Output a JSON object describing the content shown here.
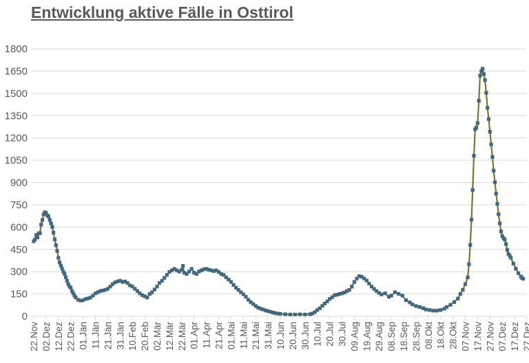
{
  "title": "Entwicklung aktive Fälle in Osttirol",
  "colors": {
    "title_text": "#595959",
    "axis_text": "#595959",
    "gridline": "#d9d9d9",
    "series_line": "#6e7c2f",
    "series_marker": "#426880",
    "background": "#ffffff"
  },
  "chart_data": {
    "type": "line",
    "title": "Entwicklung aktive Fälle in Osttirol",
    "xlabel": "",
    "ylabel": "",
    "grid": true,
    "legend": "none",
    "marker_shape": "square",
    "ylim": [
      0,
      1800
    ],
    "ytick_step": 150,
    "yticks": [
      0,
      150,
      300,
      450,
      600,
      750,
      900,
      1050,
      1200,
      1350,
      1500,
      1650,
      1800
    ],
    "xtick_interval_days": 10,
    "xtick_labels": [
      "22.Nov",
      "02.Dez",
      "12.Dez",
      "22.Dez",
      "01.Jän",
      "11.Jän",
      "21.Jän",
      "31.Jän",
      "10.Feb",
      "20.Feb",
      "02.Mär",
      "12.Mär",
      "22.Mär",
      "01.Apr",
      "11.Apr",
      "21.Apr",
      "01.Mai",
      "11.Mai",
      "21.Mai",
      "31.Mai",
      "10.Jun",
      "20.Jun",
      "30.Jun",
      "10.Jul",
      "20.Jul",
      "30.Jul",
      "09.Aug",
      "19.Aug",
      "29.Aug",
      "08.Sep",
      "18.Sep",
      "28.Sep",
      "08.Okt",
      "18.Okt",
      "28.Okt",
      "07.Nov",
      "17.Nov",
      "27.Nov",
      "07.Dez",
      "17.Dez",
      "27.Dez"
    ],
    "series": [
      {
        "name": "aktive Fälle",
        "line_color": "#6e7c2f",
        "marker_color": "#426880",
        "points_format": "[day_offset_from_22Nov, active_cases]",
        "points": [
          [
            0,
            505
          ],
          [
            1,
            517
          ],
          [
            2,
            547
          ],
          [
            3,
            530
          ],
          [
            4,
            558
          ],
          [
            5,
            560
          ],
          [
            6,
            617
          ],
          [
            7,
            648
          ],
          [
            8,
            686
          ],
          [
            9,
            700
          ],
          [
            10,
            694
          ],
          [
            11,
            679
          ],
          [
            12,
            671
          ],
          [
            13,
            648
          ],
          [
            14,
            625
          ],
          [
            15,
            601
          ],
          [
            16,
            563
          ],
          [
            17,
            517
          ],
          [
            18,
            478
          ],
          [
            19,
            440
          ],
          [
            20,
            393
          ],
          [
            21,
            362
          ],
          [
            22,
            340
          ],
          [
            23,
            320
          ],
          [
            24,
            300
          ],
          [
            25,
            285
          ],
          [
            26,
            262
          ],
          [
            27,
            239
          ],
          [
            28,
            216
          ],
          [
            29,
            200
          ],
          [
            30,
            193
          ],
          [
            31,
            170
          ],
          [
            32,
            154
          ],
          [
            33,
            139
          ],
          [
            34,
            126
          ],
          [
            36,
            111
          ],
          [
            38,
            105
          ],
          [
            40,
            108
          ],
          [
            42,
            116
          ],
          [
            44,
            120
          ],
          [
            46,
            126
          ],
          [
            48,
            139
          ],
          [
            50,
            154
          ],
          [
            52,
            162
          ],
          [
            54,
            170
          ],
          [
            56,
            173
          ],
          [
            58,
            177
          ],
          [
            60,
            185
          ],
          [
            62,
            200
          ],
          [
            64,
            216
          ],
          [
            66,
            228
          ],
          [
            68,
            234
          ],
          [
            70,
            239
          ],
          [
            72,
            231
          ],
          [
            74,
            234
          ],
          [
            76,
            224
          ],
          [
            78,
            208
          ],
          [
            80,
            200
          ],
          [
            82,
            185
          ],
          [
            84,
            170
          ],
          [
            86,
            154
          ],
          [
            88,
            142
          ],
          [
            90,
            134
          ],
          [
            92,
            126
          ],
          [
            94,
            150
          ],
          [
            96,
            162
          ],
          [
            98,
            180
          ],
          [
            100,
            200
          ],
          [
            102,
            224
          ],
          [
            104,
            239
          ],
          [
            106,
            258
          ],
          [
            108,
            278
          ],
          [
            110,
            298
          ],
          [
            112,
            309
          ],
          [
            114,
            319
          ],
          [
            116,
            309
          ],
          [
            118,
            301
          ],
          [
            120,
            313
          ],
          [
            121,
            339
          ],
          [
            122,
            293
          ],
          [
            124,
            285
          ],
          [
            126,
            301
          ],
          [
            128,
            319
          ],
          [
            130,
            293
          ],
          [
            132,
            285
          ],
          [
            134,
            301
          ],
          [
            136,
            309
          ],
          [
            138,
            316
          ],
          [
            140,
            319
          ],
          [
            142,
            313
          ],
          [
            144,
            309
          ],
          [
            146,
            304
          ],
          [
            148,
            309
          ],
          [
            150,
            298
          ],
          [
            152,
            285
          ],
          [
            154,
            278
          ],
          [
            156,
            262
          ],
          [
            158,
            247
          ],
          [
            160,
            231
          ],
          [
            162,
            211
          ],
          [
            164,
            193
          ],
          [
            166,
            177
          ],
          [
            168,
            162
          ],
          [
            170,
            148
          ],
          [
            172,
            131
          ],
          [
            174,
            111
          ],
          [
            176,
            96
          ],
          [
            178,
            83
          ],
          [
            180,
            69
          ],
          [
            182,
            58
          ],
          [
            184,
            51
          ],
          [
            186,
            46
          ],
          [
            188,
            39
          ],
          [
            190,
            35
          ],
          [
            192,
            30
          ],
          [
            194,
            25
          ],
          [
            196,
            21
          ],
          [
            198,
            18
          ],
          [
            200,
            16
          ],
          [
            204,
            14
          ],
          [
            208,
            12
          ],
          [
            212,
            12
          ],
          [
            216,
            13
          ],
          [
            220,
            12
          ],
          [
            224,
            14
          ],
          [
            226,
            18
          ],
          [
            228,
            28
          ],
          [
            230,
            42
          ],
          [
            232,
            54
          ],
          [
            234,
            70
          ],
          [
            236,
            85
          ],
          [
            238,
            100
          ],
          [
            240,
            116
          ],
          [
            242,
            128
          ],
          [
            244,
            142
          ],
          [
            246,
            145
          ],
          [
            248,
            150
          ],
          [
            250,
            154
          ],
          [
            252,
            160
          ],
          [
            254,
            170
          ],
          [
            256,
            177
          ],
          [
            258,
            200
          ],
          [
            260,
            231
          ],
          [
            262,
            254
          ],
          [
            264,
            270
          ],
          [
            266,
            266
          ],
          [
            268,
            254
          ],
          [
            270,
            240
          ],
          [
            272,
            220
          ],
          [
            274,
            200
          ],
          [
            276,
            184
          ],
          [
            278,
            170
          ],
          [
            280,
            157
          ],
          [
            282,
            147
          ],
          [
            285,
            154
          ],
          [
            288,
            131
          ],
          [
            290,
            139
          ],
          [
            293,
            162
          ],
          [
            296,
            151
          ],
          [
            299,
            139
          ],
          [
            302,
            108
          ],
          [
            305,
            93
          ],
          [
            307,
            80
          ],
          [
            310,
            69
          ],
          [
            313,
            62
          ],
          [
            316,
            54
          ],
          [
            318,
            46
          ],
          [
            321,
            42
          ],
          [
            324,
            38
          ],
          [
            327,
            38
          ],
          [
            330,
            42
          ],
          [
            333,
            51
          ],
          [
            335,
            62
          ],
          [
            338,
            77
          ],
          [
            341,
            96
          ],
          [
            344,
            119
          ],
          [
            346,
            150
          ],
          [
            348,
            177
          ],
          [
            350,
            216
          ],
          [
            352,
            262
          ],
          [
            353,
            350
          ],
          [
            354,
            480
          ],
          [
            355,
            650
          ],
          [
            356,
            850
          ],
          [
            357,
            1080
          ],
          [
            358,
            1258
          ],
          [
            359,
            1270
          ],
          [
            360,
            1300
          ],
          [
            361,
            1450
          ],
          [
            362,
            1620
          ],
          [
            363,
            1650
          ],
          [
            364,
            1666
          ],
          [
            365,
            1630
          ],
          [
            366,
            1589
          ],
          [
            367,
            1504
          ],
          [
            368,
            1403
          ],
          [
            369,
            1327
          ],
          [
            370,
            1242
          ],
          [
            371,
            1157
          ],
          [
            372,
            1072
          ],
          [
            373,
            980
          ],
          [
            374,
            902
          ],
          [
            375,
            825
          ],
          [
            376,
            756
          ],
          [
            377,
            686
          ],
          [
            378,
            625
          ],
          [
            379,
            571
          ],
          [
            380,
            540
          ],
          [
            381,
            525
          ],
          [
            382,
            517
          ],
          [
            383,
            486
          ],
          [
            384,
            447
          ],
          [
            385,
            420
          ],
          [
            386,
            408
          ],
          [
            387,
            394
          ],
          [
            389,
            355
          ],
          [
            391,
            320
          ],
          [
            393,
            290
          ],
          [
            395,
            268
          ],
          [
            396,
            258
          ],
          [
            397,
            252
          ]
        ]
      }
    ]
  }
}
